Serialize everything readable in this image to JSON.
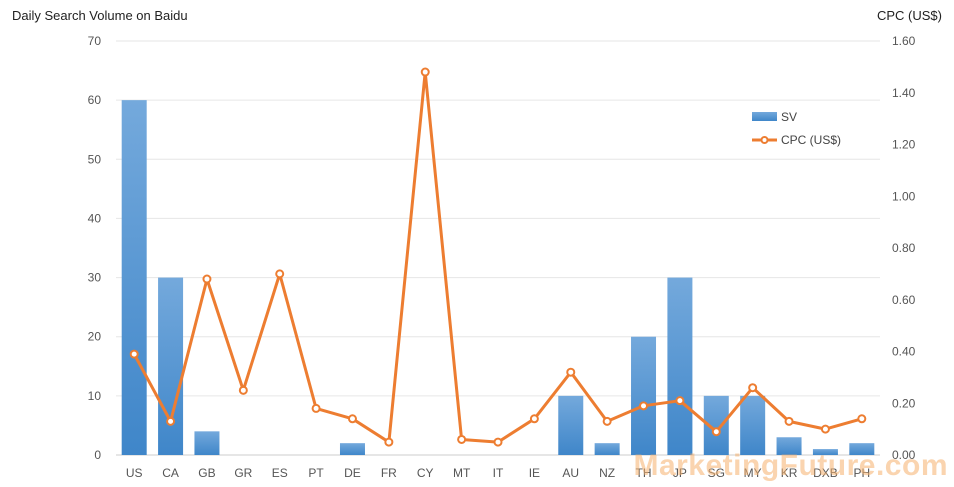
{
  "chart_data": {
    "type": "bar+line",
    "title": "Daily Search Volume on Baidu",
    "right_axis_title": "CPC (US$)",
    "categories": [
      "US",
      "CA",
      "GB",
      "GR",
      "ES",
      "PT",
      "DE",
      "FR",
      "CY",
      "MT",
      "IT",
      "IE",
      "AU",
      "NZ",
      "TH",
      "JP",
      "SG",
      "MY",
      "KR",
      "DXB",
      "PH"
    ],
    "series": [
      {
        "name": "SV",
        "type": "bar",
        "axis": "left",
        "color": "#5b9bd5",
        "values": [
          60,
          30,
          4,
          0,
          0,
          0,
          2,
          0,
          0,
          0,
          0,
          0,
          10,
          2,
          20,
          30,
          10,
          10,
          3,
          1,
          2
        ]
      },
      {
        "name": "CPC (US$)",
        "type": "line",
        "axis": "right",
        "color": "#ed7d31",
        "values": [
          0.39,
          0.13,
          0.68,
          0.25,
          0.7,
          0.18,
          0.14,
          0.05,
          1.48,
          0.06,
          0.05,
          0.14,
          0.32,
          0.13,
          0.19,
          0.21,
          0.09,
          0.26,
          0.13,
          0.1,
          0.14
        ]
      }
    ],
    "left_axis": {
      "min": 0,
      "max": 70,
      "ticks": [
        "0",
        "10",
        "20",
        "30",
        "40",
        "50",
        "60",
        "70"
      ]
    },
    "right_axis": {
      "min": 0,
      "max": 1.6,
      "ticks": [
        "0.00",
        "0.20",
        "0.40",
        "0.60",
        "0.80",
        "1.00",
        "1.20",
        "1.40",
        "1.60"
      ]
    },
    "grid": true,
    "legend_position": "top-right"
  },
  "watermark": "MarketingFuture.com"
}
